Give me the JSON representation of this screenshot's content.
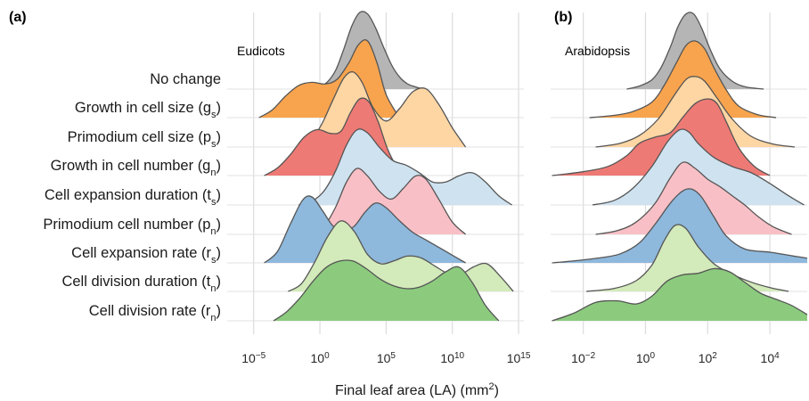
{
  "figure": {
    "xlabel": "Final leaf area (LA) (mm",
    "xlabel_sup": "2",
    "xlabel_close": ")"
  },
  "chart_data": [
    {
      "type": "ridgeline",
      "tag": "(a)",
      "title": "Eudicots",
      "xscale": "log10",
      "xlim_log10": [
        -7,
        15.4
      ],
      "xticks": [
        {
          "exp": -5,
          "base": "10",
          "sup": "−5"
        },
        {
          "exp": 0,
          "base": "10",
          "sup": "0"
        },
        {
          "exp": 5,
          "base": "10",
          "sup": "5"
        },
        {
          "exp": 10,
          "base": "10",
          "sup": "10"
        },
        {
          "exp": 15,
          "base": "10",
          "sup": "15"
        }
      ],
      "grid": true,
      "rows": [
        {
          "label": "No change",
          "color": "#b5b5b5",
          "x": [
            -0.6,
            0,
            0.6,
            1.2,
            1.8,
            2.4,
            3,
            3.6,
            4.2,
            4.8,
            5.4,
            6,
            6.6,
            7.2,
            7.8
          ],
          "density": [
            0,
            0.03,
            0.1,
            0.25,
            0.52,
            0.82,
            1,
            0.98,
            0.8,
            0.55,
            0.32,
            0.16,
            0.07,
            0.03,
            0
          ]
        },
        {
          "label": "Growth in cell size (g",
          "sub": "s",
          "close": ")",
          "color": "#f8a44e",
          "x": [
            -4.6,
            -3.6,
            -2.6,
            -1.6,
            -0.6,
            0.4,
            1.3,
            2.2,
            2.9,
            3.6,
            4.3,
            5,
            6
          ],
          "density": [
            0,
            0.1,
            0.28,
            0.42,
            0.46,
            0.44,
            0.5,
            0.72,
            0.95,
            1,
            0.72,
            0.3,
            0
          ]
        },
        {
          "label": "Primodium cell size (p",
          "sub": "s",
          "close": ")",
          "color": "#fdd6a4",
          "x": [
            -1.4,
            -0.6,
            0.2,
            1,
            1.8,
            2.5,
            3.2,
            4,
            5,
            6,
            7,
            8,
            9,
            10,
            11
          ],
          "density": [
            0,
            0.1,
            0.32,
            0.62,
            0.9,
            0.98,
            0.84,
            0.52,
            0.34,
            0.5,
            0.72,
            0.76,
            0.55,
            0.25,
            0
          ]
        },
        {
          "label": "Growth in cell number (g",
          "sub": "n",
          "close": ")",
          "color": "#ee7a75",
          "x": [
            -4.2,
            -3.2,
            -2.2,
            -1.2,
            -0.2,
            0.8,
            1.6,
            2.3,
            3,
            3.7,
            4.4,
            5.1,
            5.8,
            6.6
          ],
          "density": [
            0,
            0.1,
            0.28,
            0.5,
            0.6,
            0.55,
            0.58,
            0.82,
            1,
            0.96,
            0.7,
            0.35,
            0.12,
            0
          ]
        },
        {
          "label": "Cell expansion duration (t",
          "sub": "s",
          "close": ")",
          "color": "#cfe2f0",
          "x": [
            -1.6,
            -0.6,
            0.3,
            1.2,
            2,
            2.8,
            3.6,
            4.5,
            5.5,
            6.5,
            7.5,
            8.5,
            9.5,
            10.5,
            11.5,
            12.5,
            13.5,
            14.5
          ],
          "density": [
            0,
            0.05,
            0.18,
            0.45,
            0.78,
            0.98,
            0.94,
            0.75,
            0.58,
            0.52,
            0.42,
            0.3,
            0.3,
            0.38,
            0.42,
            0.3,
            0.12,
            0
          ]
        },
        {
          "label": "Primodium cell number (p",
          "sub": "n",
          "close": ")",
          "color": "#f8c0c6",
          "x": [
            -0.6,
            0.3,
            1.2,
            2,
            2.8,
            3.6,
            4.5,
            5.4,
            6.3,
            7.2,
            8,
            9,
            10,
            11
          ],
          "density": [
            0,
            0.1,
            0.36,
            0.68,
            0.86,
            0.76,
            0.56,
            0.46,
            0.6,
            0.76,
            0.72,
            0.45,
            0.16,
            0
          ]
        },
        {
          "label": "Cell expansion rate (r",
          "sub": "s",
          "close": ")",
          "color": "#8eb8dc",
          "x": [
            -4.2,
            -3.2,
            -2.2,
            -1.3,
            -0.6,
            0.2,
            1,
            1.8,
            2.6,
            3.4,
            4.2,
            5,
            6,
            7,
            8,
            9,
            10,
            11
          ],
          "density": [
            0,
            0.15,
            0.52,
            0.82,
            0.86,
            0.68,
            0.48,
            0.42,
            0.48,
            0.66,
            0.78,
            0.72,
            0.55,
            0.4,
            0.3,
            0.2,
            0.1,
            0
          ]
        },
        {
          "label": "Cell division duration (t",
          "sub": "n",
          "close": ")",
          "color": "#d3eaba",
          "x": [
            -2.4,
            -1.4,
            -0.4,
            0.6,
            1.6,
            2.6,
            3.6,
            4.6,
            5.6,
            6.6,
            7.6,
            8.6,
            9.6,
            10.6,
            11.6,
            12.6,
            13.6,
            14.6
          ],
          "density": [
            0,
            0.1,
            0.38,
            0.72,
            0.92,
            0.78,
            0.48,
            0.36,
            0.4,
            0.46,
            0.44,
            0.34,
            0.24,
            0.22,
            0.32,
            0.36,
            0.2,
            0
          ]
        },
        {
          "label": "Cell division rate (r",
          "sub": "n",
          "close": ")",
          "color": "#8ccb7e",
          "x": [
            -3.5,
            -2.5,
            -1.5,
            -0.5,
            0.5,
            1.5,
            2.5,
            3.5,
            4.5,
            5.5,
            6.5,
            7.5,
            8.5,
            9.5,
            10.5,
            11.5,
            12.5,
            13.5
          ],
          "density": [
            0,
            0.12,
            0.3,
            0.52,
            0.7,
            0.78,
            0.78,
            0.68,
            0.55,
            0.46,
            0.42,
            0.44,
            0.52,
            0.64,
            0.7,
            0.5,
            0.2,
            0
          ]
        }
      ]
    },
    {
      "type": "ridgeline",
      "tag": "(b)",
      "title": "Arabidopsis",
      "xscale": "log10",
      "xlim_log10": [
        -3.05,
        5.2
      ],
      "xticks": [
        {
          "exp": -2,
          "base": "10",
          "sup": "−2"
        },
        {
          "exp": 0,
          "base": "10",
          "sup": "0"
        },
        {
          "exp": 2,
          "base": "10",
          "sup": "2"
        },
        {
          "exp": 4,
          "base": "10",
          "sup": "4"
        }
      ],
      "grid": true,
      "rows": [
        {
          "label": "No change",
          "color": "#b5b5b5",
          "x": [
            -0.6,
            -0.2,
            0.2,
            0.5,
            0.8,
            1.05,
            1.3,
            1.55,
            1.8,
            2.1,
            2.4,
            2.8,
            3.2,
            3.8
          ],
          "density": [
            0,
            0.04,
            0.12,
            0.28,
            0.55,
            0.82,
            0.98,
            0.98,
            0.8,
            0.5,
            0.26,
            0.1,
            0.03,
            0
          ]
        },
        {
          "label": "Growth in cell size (g",
          "sub": "s",
          "close": ")",
          "color": "#f8a44e",
          "x": [
            -1.8,
            -1,
            -0.4,
            0.2,
            0.6,
            1,
            1.3,
            1.6,
            1.9,
            2.2,
            2.6,
            3,
            3.6,
            4.2
          ],
          "density": [
            0,
            0.03,
            0.08,
            0.2,
            0.42,
            0.72,
            0.94,
            1,
            0.9,
            0.65,
            0.36,
            0.15,
            0.04,
            0
          ]
        },
        {
          "label": "Primodium cell size (p",
          "sub": "s",
          "close": ")",
          "color": "#fdd6a4",
          "x": [
            -1.6,
            -0.8,
            -0.2,
            0.4,
            0.9,
            1.3,
            1.6,
            1.9,
            2.3,
            2.8,
            3.4,
            4.1,
            4.8
          ],
          "density": [
            0,
            0.05,
            0.15,
            0.36,
            0.66,
            0.88,
            0.92,
            0.86,
            0.64,
            0.36,
            0.14,
            0.04,
            0
          ]
        },
        {
          "label": "Growth in cell number (g",
          "sub": "n",
          "close": ")",
          "color": "#ee7a75",
          "x": [
            -3,
            -2,
            -1.2,
            -0.6,
            -0.2,
            0.3,
            0.8,
            1.2,
            1.6,
            2,
            2.3,
            2.6,
            3,
            3.5,
            4
          ],
          "density": [
            0,
            0.05,
            0.12,
            0.26,
            0.42,
            0.5,
            0.56,
            0.76,
            0.94,
            1,
            0.94,
            0.7,
            0.36,
            0.12,
            0
          ]
        },
        {
          "label": "Cell expansion duration (t",
          "sub": "s",
          "close": ")",
          "color": "#cfe2f0",
          "x": [
            -1.7,
            -1,
            -0.4,
            0.2,
            0.7,
            1.1,
            1.4,
            1.7,
            2.2,
            2.8,
            3.4,
            4,
            4.6,
            5.1
          ],
          "density": [
            0,
            0.06,
            0.22,
            0.5,
            0.82,
            0.98,
            0.95,
            0.8,
            0.62,
            0.5,
            0.42,
            0.28,
            0.12,
            0
          ]
        },
        {
          "label": "Primodium cell number (p",
          "sub": "n",
          "close": ")",
          "color": "#f8c0c6",
          "x": [
            -1.6,
            -0.9,
            -0.3,
            0.3,
            0.8,
            1.2,
            1.6,
            2,
            2.4,
            2.8,
            3.2,
            3.6,
            4.1,
            4.7
          ],
          "density": [
            0,
            0.05,
            0.16,
            0.4,
            0.74,
            0.94,
            0.86,
            0.72,
            0.62,
            0.5,
            0.38,
            0.24,
            0.1,
            0
          ]
        },
        {
          "label": "Cell expansion rate (r",
          "sub": "s",
          "close": ")",
          "color": "#8eb8dc",
          "x": [
            -3,
            -2.2,
            -1.4,
            -0.8,
            -0.2,
            0.3,
            0.8,
            1.2,
            1.5,
            1.8,
            2.2,
            2.6,
            3.2,
            4,
            4.6,
            5.2
          ],
          "density": [
            0,
            0.03,
            0.07,
            0.12,
            0.26,
            0.5,
            0.78,
            0.94,
            0.96,
            0.86,
            0.6,
            0.35,
            0.18,
            0.14,
            0.1,
            0.06
          ]
        },
        {
          "label": "Cell division duration (t",
          "sub": "n",
          "close": ")",
          "color": "#d3eaba",
          "x": [
            -1.9,
            -1,
            -0.3,
            0.2,
            0.6,
            0.95,
            1.3,
            1.7,
            2.2,
            2.8,
            3.4,
            4,
            4.6
          ],
          "density": [
            0,
            0.04,
            0.14,
            0.34,
            0.66,
            0.86,
            0.82,
            0.58,
            0.36,
            0.22,
            0.12,
            0.05,
            0
          ]
        },
        {
          "label": "Cell division rate (r",
          "sub": "n",
          "close": ")",
          "color": "#8ccb7e",
          "x": [
            -3,
            -2.3,
            -1.6,
            -0.9,
            -0.3,
            0.2,
            0.7,
            1.2,
            1.7,
            2.2,
            2.7,
            3.2,
            3.7,
            4.2,
            4.7,
            5.2
          ],
          "density": [
            0,
            0.1,
            0.24,
            0.26,
            0.22,
            0.32,
            0.52,
            0.6,
            0.62,
            0.68,
            0.64,
            0.5,
            0.36,
            0.28,
            0.2,
            0.08
          ]
        }
      ]
    }
  ]
}
